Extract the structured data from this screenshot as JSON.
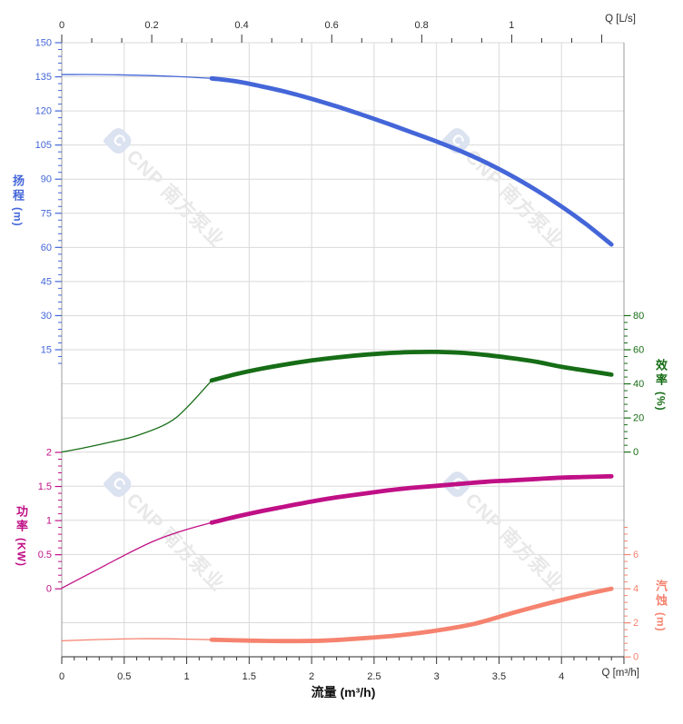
{
  "watermark": {
    "text": "CNP 南方泵业",
    "logo_letter": "C",
    "text_color": "#e8e8e8",
    "logo_color": "#dbe2f0"
  },
  "axes": {
    "top": {
      "title": "Q [L/s]",
      "tick_labels": [
        "0",
        "0.2",
        "0.4",
        "0.6",
        "0.8",
        "1"
      ],
      "tick_values": [
        0,
        0.2,
        0.4,
        0.6,
        0.8,
        1
      ],
      "color": "#2d2d2d"
    },
    "bottom": {
      "title": "流量 (m³/h)",
      "corner_label": "Q [m³/h]",
      "tick_labels": [
        "0",
        "0.5",
        "1",
        "1.5",
        "2",
        "2.5",
        "3",
        "3.5",
        "4"
      ],
      "tick_values": [
        0,
        0.5,
        1,
        1.5,
        2,
        2.5,
        3,
        3.5,
        4
      ],
      "max": 4.5,
      "color": "#2d2d2d"
    },
    "head": {
      "title": "扬程",
      "unit": "(m)",
      "color": "#4466d8",
      "tick_values": [
        150,
        135,
        120,
        105,
        90,
        75,
        60,
        45,
        30,
        15
      ],
      "minor_step": 3
    },
    "power": {
      "title": "功率",
      "unit": "(KW)",
      "color": "#c01086",
      "tick_values": [
        2,
        1.5,
        1,
        0.5,
        0
      ],
      "minor_step": 0.1
    },
    "efficiency": {
      "title": "效率",
      "unit": "(%)",
      "color": "#166d16",
      "tick_values": [
        80,
        60,
        40,
        20,
        0
      ],
      "minor_step": 4
    },
    "npsh": {
      "title": "汽蚀",
      "unit": "(m)",
      "color": "#f5836f",
      "tick_values": [
        6,
        4,
        2,
        0
      ],
      "minor_step": 0.4
    }
  },
  "chart_data": {
    "type": "line",
    "x_unit": "m³/h",
    "x_range": [
      0,
      4.5
    ],
    "grid": true,
    "duty_split_q": 1.2,
    "series": [
      {
        "name": "head",
        "label": "扬程",
        "unit": "m",
        "axis": "head",
        "color": "#4466d8",
        "thin": [
          [
            0,
            136
          ],
          [
            0.3,
            136
          ],
          [
            0.6,
            135.7
          ],
          [
            0.9,
            135.2
          ],
          [
            1.05,
            134.8
          ],
          [
            1.2,
            134.3
          ]
        ],
        "thick": [
          [
            1.2,
            134.3
          ],
          [
            1.4,
            133
          ],
          [
            1.6,
            130.8
          ],
          [
            1.8,
            128.3
          ],
          [
            2.0,
            125.3
          ],
          [
            2.2,
            122
          ],
          [
            2.4,
            118.4
          ],
          [
            2.6,
            114.6
          ],
          [
            2.8,
            110.6
          ],
          [
            3.0,
            106.6
          ],
          [
            3.2,
            102.2
          ],
          [
            3.4,
            97.2
          ],
          [
            3.6,
            91.5
          ],
          [
            3.8,
            85.1
          ],
          [
            4.0,
            78
          ],
          [
            4.2,
            70.1
          ],
          [
            4.4,
            61.3
          ]
        ]
      },
      {
        "name": "efficiency",
        "label": "效率",
        "unit": "%",
        "axis": "efficiency",
        "color": "#166d16",
        "thin": [
          [
            0,
            0
          ],
          [
            0.2,
            2.8
          ],
          [
            0.4,
            6
          ],
          [
            0.6,
            9.6
          ],
          [
            0.85,
            17
          ],
          [
            1.0,
            26
          ],
          [
            1.2,
            42
          ]
        ],
        "thick": [
          [
            1.2,
            42
          ],
          [
            1.4,
            45.8
          ],
          [
            1.6,
            48.9
          ],
          [
            1.8,
            51.5
          ],
          [
            2.0,
            53.7
          ],
          [
            2.2,
            55.5
          ],
          [
            2.4,
            56.9
          ],
          [
            2.6,
            58
          ],
          [
            2.8,
            58.6
          ],
          [
            3.0,
            58.7
          ],
          [
            3.2,
            58.2
          ],
          [
            3.4,
            56.9
          ],
          [
            3.6,
            55.1
          ],
          [
            3.8,
            52.9
          ],
          [
            4.0,
            50
          ],
          [
            4.2,
            47.7
          ],
          [
            4.4,
            45.4
          ]
        ]
      },
      {
        "name": "power",
        "label": "功率",
        "unit": "KW",
        "axis": "power",
        "color": "#c01086",
        "thin": [
          [
            0,
            0.01
          ],
          [
            0.25,
            0.25
          ],
          [
            0.5,
            0.49
          ],
          [
            0.75,
            0.71
          ],
          [
            1.0,
            0.87
          ],
          [
            1.2,
            0.97
          ]
        ],
        "thick": [
          [
            1.2,
            0.97
          ],
          [
            1.4,
            1.06
          ],
          [
            1.6,
            1.14
          ],
          [
            1.8,
            1.21
          ],
          [
            2.0,
            1.28
          ],
          [
            2.2,
            1.34
          ],
          [
            2.4,
            1.39
          ],
          [
            2.6,
            1.44
          ],
          [
            2.8,
            1.48
          ],
          [
            3.0,
            1.51
          ],
          [
            3.2,
            1.54
          ],
          [
            3.4,
            1.57
          ],
          [
            3.6,
            1.59
          ],
          [
            3.8,
            1.61
          ],
          [
            4.0,
            1.63
          ],
          [
            4.2,
            1.64
          ],
          [
            4.4,
            1.65
          ]
        ]
      },
      {
        "name": "npsh",
        "label": "汽蚀",
        "unit": "m",
        "axis": "npsh",
        "color": "#f5836f",
        "thin": [
          [
            0,
            0.95
          ],
          [
            0.3,
            1.02
          ],
          [
            0.6,
            1.07
          ],
          [
            0.9,
            1.06
          ],
          [
            1.2,
            1.01
          ]
        ],
        "thick": [
          [
            1.2,
            1.01
          ],
          [
            1.5,
            0.96
          ],
          [
            1.8,
            0.93
          ],
          [
            2.1,
            0.96
          ],
          [
            2.4,
            1.09
          ],
          [
            2.7,
            1.27
          ],
          [
            3.0,
            1.55
          ],
          [
            3.3,
            1.94
          ],
          [
            3.6,
            2.56
          ],
          [
            3.9,
            3.15
          ],
          [
            4.15,
            3.6
          ],
          [
            4.4,
            4.0
          ]
        ]
      }
    ]
  }
}
